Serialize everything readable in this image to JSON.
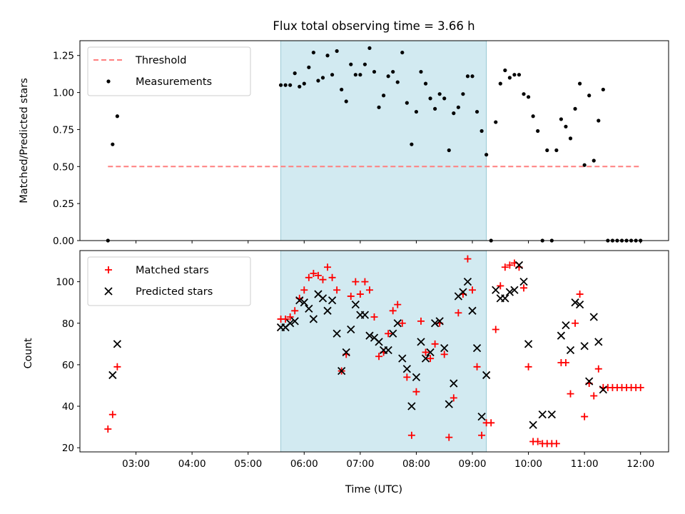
{
  "chart_data": {
    "type": "scatter",
    "title": "Flux total observing time = 3.66 h",
    "xlabel": "Time (UTC)",
    "x_ticks": [
      "03:00",
      "04:00",
      "05:00",
      "06:00",
      "07:00",
      "08:00",
      "09:00",
      "10:00",
      "11:00",
      "12:00"
    ],
    "xlim": [
      "02:00",
      "12:30"
    ],
    "shaded_interval": {
      "start": "05:35",
      "end": "09:15",
      "color": "#add8e6"
    },
    "panels": [
      {
        "ylabel": "Matched/Predicted stars",
        "ylim": [
          0,
          1.35
        ],
        "y_ticks": [
          "0.00",
          "0.25",
          "0.50",
          "0.75",
          "1.00",
          "1.25"
        ],
        "legend_position": "upper-left",
        "legend": [
          "Threshold",
          "Measurements"
        ],
        "series": [
          {
            "name": "Threshold",
            "kind": "dashed-line",
            "color": "#ff7f7f",
            "x": [
              "02:30",
              "12:00"
            ],
            "y": [
              0.5,
              0.5
            ]
          },
          {
            "name": "Measurements",
            "kind": "dot",
            "color": "#000000",
            "points": [
              [
                "02:30",
                0.0
              ],
              [
                "02:35",
                0.65
              ],
              [
                "02:40",
                0.84
              ],
              [
                "05:35",
                1.05
              ],
              [
                "05:40",
                1.05
              ],
              [
                "05:45",
                1.05
              ],
              [
                "05:50",
                1.13
              ],
              [
                "05:55",
                1.04
              ],
              [
                "06:00",
                1.06
              ],
              [
                "06:05",
                1.17
              ],
              [
                "06:10",
                1.27
              ],
              [
                "06:15",
                1.08
              ],
              [
                "06:20",
                1.1
              ],
              [
                "06:25",
                1.25
              ],
              [
                "06:30",
                1.12
              ],
              [
                "06:35",
                1.28
              ],
              [
                "06:40",
                1.02
              ],
              [
                "06:45",
                0.94
              ],
              [
                "06:50",
                1.19
              ],
              [
                "06:55",
                1.12
              ],
              [
                "07:00",
                1.12
              ],
              [
                "07:05",
                1.19
              ],
              [
                "07:10",
                1.3
              ],
              [
                "07:15",
                1.14
              ],
              [
                "07:20",
                0.9
              ],
              [
                "07:25",
                0.98
              ],
              [
                "07:30",
                1.11
              ],
              [
                "07:35",
                1.14
              ],
              [
                "07:40",
                1.07
              ],
              [
                "07:45",
                1.27
              ],
              [
                "07:50",
                0.93
              ],
              [
                "07:55",
                0.65
              ],
              [
                "08:00",
                0.87
              ],
              [
                "08:05",
                1.14
              ],
              [
                "08:10",
                1.06
              ],
              [
                "08:15",
                0.96
              ],
              [
                "08:20",
                0.89
              ],
              [
                "08:25",
                0.99
              ],
              [
                "08:30",
                0.96
              ],
              [
                "08:35",
                0.61
              ],
              [
                "08:40",
                0.86
              ],
              [
                "08:45",
                0.9
              ],
              [
                "08:50",
                0.99
              ],
              [
                "08:55",
                1.11
              ],
              [
                "09:00",
                1.11
              ],
              [
                "09:05",
                0.87
              ],
              [
                "09:10",
                0.74
              ],
              [
                "09:15",
                0.58
              ],
              [
                "09:20",
                0.0
              ],
              [
                "09:25",
                0.8
              ],
              [
                "09:30",
                1.06
              ],
              [
                "09:35",
                1.15
              ],
              [
                "09:40",
                1.1
              ],
              [
                "09:45",
                1.12
              ],
              [
                "09:50",
                1.12
              ],
              [
                "09:55",
                0.99
              ],
              [
                "10:00",
                0.97
              ],
              [
                "10:05",
                0.84
              ],
              [
                "10:10",
                0.74
              ],
              [
                "10:15",
                0.0
              ],
              [
                "10:20",
                0.61
              ],
              [
                "10:25",
                0.0
              ],
              [
                "10:30",
                0.61
              ],
              [
                "10:35",
                0.82
              ],
              [
                "10:40",
                0.77
              ],
              [
                "10:45",
                0.69
              ],
              [
                "10:50",
                0.89
              ],
              [
                "10:55",
                1.06
              ],
              [
                "11:00",
                0.51
              ],
              [
                "11:05",
                0.98
              ],
              [
                "11:10",
                0.54
              ],
              [
                "11:15",
                0.81
              ],
              [
                "11:20",
                1.02
              ],
              [
                "11:25",
                0.0
              ],
              [
                "11:30",
                0.0
              ],
              [
                "11:35",
                0.0
              ],
              [
                "11:40",
                0.0
              ],
              [
                "11:45",
                0.0
              ],
              [
                "11:50",
                0.0
              ],
              [
                "11:55",
                0.0
              ],
              [
                "12:00",
                0.0
              ]
            ]
          }
        ]
      },
      {
        "ylabel": "Count",
        "ylim": [
          18,
          115
        ],
        "y_ticks": [
          "20",
          "40",
          "60",
          "80",
          "100"
        ],
        "legend_position": "upper-left",
        "legend": [
          "Matched stars",
          "Predicted stars"
        ],
        "series": [
          {
            "name": "Matched stars",
            "kind": "plus",
            "color": "#ff0000",
            "points": [
              [
                "02:30",
                29
              ],
              [
                "02:35",
                36
              ],
              [
                "02:40",
                59
              ],
              [
                "05:35",
                82
              ],
              [
                "05:40",
                82
              ],
              [
                "05:45",
                83
              ],
              [
                "05:50",
                86
              ],
              [
                "05:55",
                92
              ],
              [
                "06:00",
                96
              ],
              [
                "06:05",
                102
              ],
              [
                "06:10",
                104
              ],
              [
                "06:15",
                103
              ],
              [
                "06:20",
                101
              ],
              [
                "06:25",
                107
              ],
              [
                "06:30",
                102
              ],
              [
                "06:35",
                96
              ],
              [
                "06:40",
                57
              ],
              [
                "06:45",
                65
              ],
              [
                "06:50",
                93
              ],
              [
                "06:55",
                100
              ],
              [
                "07:00",
                94
              ],
              [
                "07:05",
                100
              ],
              [
                "07:10",
                96
              ],
              [
                "07:15",
                83
              ],
              [
                "07:20",
                64
              ],
              [
                "07:25",
                66
              ],
              [
                "07:30",
                75
              ],
              [
                "07:35",
                86
              ],
              [
                "07:40",
                89
              ],
              [
                "07:45",
                80
              ],
              [
                "07:50",
                54
              ],
              [
                "07:55",
                26
              ],
              [
                "08:00",
                47
              ],
              [
                "08:05",
                81
              ],
              [
                "08:10",
                66
              ],
              [
                "08:15",
                63
              ],
              [
                "08:20",
                70
              ],
              [
                "08:25",
                80
              ],
              [
                "08:30",
                65
              ],
              [
                "08:35",
                25
              ],
              [
                "08:40",
                44
              ],
              [
                "08:45",
                85
              ],
              [
                "08:50",
                94
              ],
              [
                "08:55",
                111
              ],
              [
                "09:00",
                96
              ],
              [
                "09:05",
                59
              ],
              [
                "09:10",
                26
              ],
              [
                "09:15",
                32
              ],
              [
                "09:20",
                32
              ],
              [
                "09:25",
                77
              ],
              [
                "09:30",
                98
              ],
              [
                "09:35",
                107
              ],
              [
                "09:40",
                108
              ],
              [
                "09:45",
                109
              ],
              [
                "09:50",
                107
              ],
              [
                "09:55",
                97
              ],
              [
                "10:00",
                59
              ],
              [
                "10:05",
                23
              ],
              [
                "10:10",
                23
              ],
              [
                "10:15",
                22
              ],
              [
                "10:20",
                22
              ],
              [
                "10:25",
                22
              ],
              [
                "10:30",
                22
              ],
              [
                "10:35",
                61
              ],
              [
                "10:40",
                61
              ],
              [
                "10:45",
                46
              ],
              [
                "10:50",
                80
              ],
              [
                "10:55",
                94
              ],
              [
                "11:00",
                35
              ],
              [
                "11:05",
                51
              ],
              [
                "11:10",
                45
              ],
              [
                "11:15",
                58
              ],
              [
                "11:20",
                49
              ],
              [
                "11:25",
                49
              ],
              [
                "11:30",
                49
              ],
              [
                "11:35",
                49
              ],
              [
                "11:40",
                49
              ],
              [
                "11:45",
                49
              ],
              [
                "11:50",
                49
              ],
              [
                "11:55",
                49
              ],
              [
                "12:00",
                49
              ]
            ]
          },
          {
            "name": "Predicted stars",
            "kind": "x",
            "color": "#000000",
            "points": [
              [
                "02:35",
                55
              ],
              [
                "02:40",
                70
              ],
              [
                "05:35",
                78
              ],
              [
                "05:40",
                78
              ],
              [
                "05:45",
                80
              ],
              [
                "05:50",
                81
              ],
              [
                "05:55",
                91
              ],
              [
                "06:00",
                90
              ],
              [
                "06:05",
                87
              ],
              [
                "06:10",
                82
              ],
              [
                "06:15",
                94
              ],
              [
                "06:20",
                92
              ],
              [
                "06:25",
                86
              ],
              [
                "06:30",
                91
              ],
              [
                "06:35",
                75
              ],
              [
                "06:40",
                57
              ],
              [
                "06:45",
                66
              ],
              [
                "06:50",
                77
              ],
              [
                "06:55",
                89
              ],
              [
                "07:00",
                84
              ],
              [
                "07:05",
                84
              ],
              [
                "07:10",
                74
              ],
              [
                "07:15",
                73
              ],
              [
                "07:20",
                71
              ],
              [
                "07:25",
                67
              ],
              [
                "07:30",
                67
              ],
              [
                "07:35",
                75
              ],
              [
                "07:40",
                80
              ],
              [
                "07:45",
                63
              ],
              [
                "07:50",
                58
              ],
              [
                "07:55",
                40
              ],
              [
                "08:00",
                54
              ],
              [
                "08:05",
                71
              ],
              [
                "08:10",
                63
              ],
              [
                "08:15",
                66
              ],
              [
                "08:20",
                80
              ],
              [
                "08:25",
                81
              ],
              [
                "08:30",
                68
              ],
              [
                "08:35",
                41
              ],
              [
                "08:40",
                51
              ],
              [
                "08:45",
                93
              ],
              [
                "08:50",
                95
              ],
              [
                "08:55",
                100
              ],
              [
                "09:00",
                86
              ],
              [
                "09:05",
                68
              ],
              [
                "09:10",
                35
              ],
              [
                "09:15",
                55
              ],
              [
                "09:25",
                96
              ],
              [
                "09:30",
                92
              ],
              [
                "09:35",
                92
              ],
              [
                "09:40",
                95
              ],
              [
                "09:45",
                96
              ],
              [
                "09:50",
                108
              ],
              [
                "09:55",
                100
              ],
              [
                "10:00",
                70
              ],
              [
                "10:05",
                31
              ],
              [
                "10:15",
                36
              ],
              [
                "10:25",
                36
              ],
              [
                "10:35",
                74
              ],
              [
                "10:40",
                79
              ],
              [
                "10:45",
                67
              ],
              [
                "10:50",
                90
              ],
              [
                "10:55",
                89
              ],
              [
                "11:00",
                69
              ],
              [
                "11:05",
                52
              ],
              [
                "11:10",
                83
              ],
              [
                "11:15",
                71
              ],
              [
                "11:20",
                48
              ]
            ]
          }
        ]
      }
    ]
  }
}
